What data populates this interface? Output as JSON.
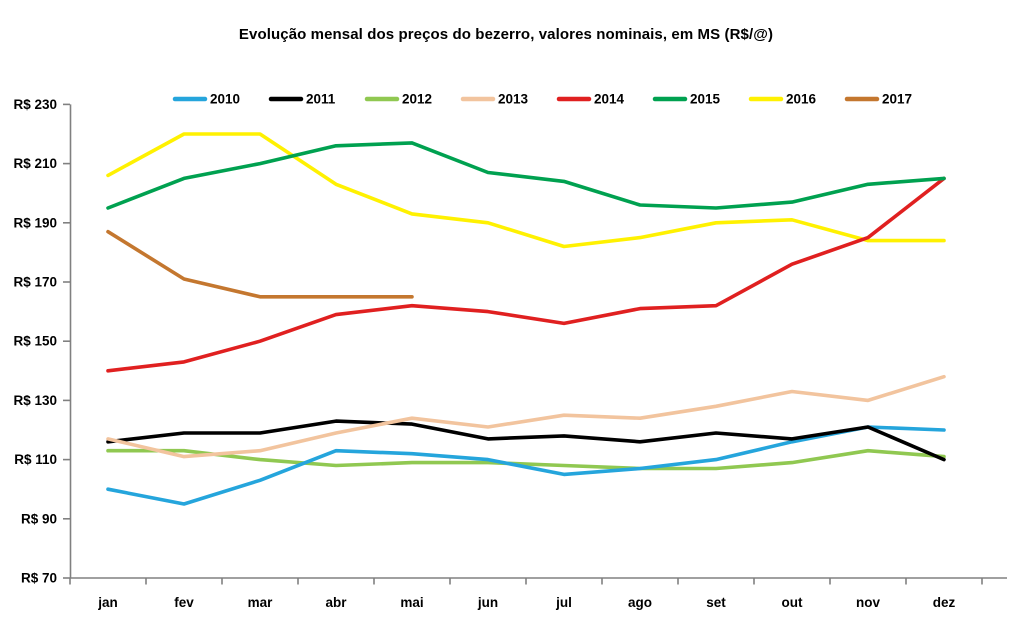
{
  "chart_data": {
    "type": "line",
    "title": "Evolução mensal dos preços do bezerro, valores nominais, em MS (R$/@)",
    "categories": [
      "jan",
      "fev",
      "mar",
      "abr",
      "mai",
      "jun",
      "jul",
      "ago",
      "set",
      "out",
      "nov",
      "dez"
    ],
    "y_axis": {
      "min": 70,
      "max": 230,
      "step": 20,
      "tick_prefix": "R$ ",
      "labels": [
        "R$ 70",
        "R$ 90",
        "R$ 110",
        "R$ 130",
        "R$ 150",
        "R$ 170",
        "R$ 190",
        "R$ 210",
        "R$ 230"
      ]
    },
    "grid": false,
    "legend_position": "top",
    "axis_color": "#808080",
    "text_color": "#000000",
    "series": [
      {
        "name": "2010",
        "color": "#25A5DC",
        "values": [
          100,
          95,
          103,
          113,
          112,
          110,
          105,
          107,
          110,
          116,
          121,
          120
        ]
      },
      {
        "name": "2011",
        "color": "#000000",
        "values": [
          116,
          119,
          119,
          123,
          122,
          117,
          118,
          116,
          119,
          117,
          121,
          110
        ]
      },
      {
        "name": "2012",
        "color": "#90C851",
        "values": [
          113,
          113,
          110,
          108,
          109,
          109,
          108,
          107,
          107,
          109,
          113,
          111
        ]
      },
      {
        "name": "2013",
        "color": "#F2C49E",
        "values": [
          117,
          111,
          113,
          119,
          124,
          121,
          125,
          124,
          128,
          133,
          130,
          138
        ]
      },
      {
        "name": "2014",
        "color": "#E02020",
        "values": [
          140,
          143,
          150,
          159,
          162,
          160,
          156,
          161,
          162,
          176,
          185,
          205
        ]
      },
      {
        "name": "2015",
        "color": "#00A150",
        "values": [
          195,
          205,
          210,
          216,
          217,
          207,
          204,
          196,
          195,
          197,
          203,
          205
        ]
      },
      {
        "name": "2016",
        "color": "#FFF101",
        "values": [
          206,
          220,
          220,
          203,
          193,
          190,
          182,
          185,
          190,
          191,
          184,
          184
        ]
      },
      {
        "name": "2017",
        "color": "#C4772F",
        "values": [
          187,
          171,
          165,
          165,
          165,
          null,
          null,
          null,
          null,
          null,
          null,
          null
        ]
      }
    ]
  }
}
